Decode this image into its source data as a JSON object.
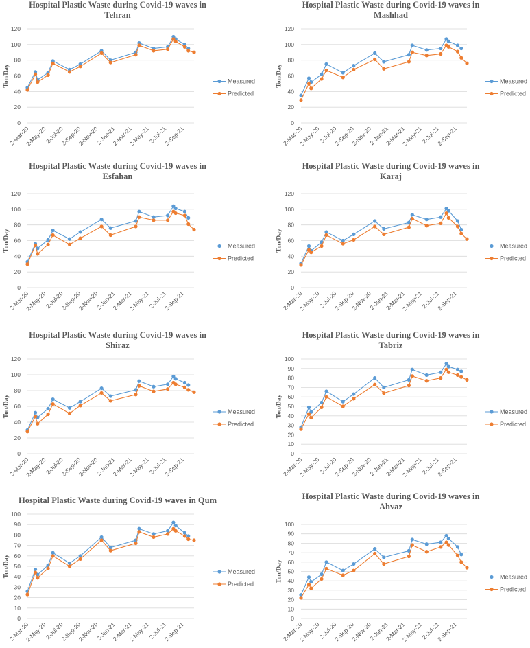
{
  "colors": {
    "measured": "#5B9BD5",
    "predicted": "#ED7D31",
    "grid": "#D9D9D9"
  },
  "chart_data": [
    {
      "type": "line",
      "title_lines": [
        "Hospital Plastic Waste during  Covid-19 waves in",
        "Tehran"
      ],
      "ylabel": "Ton/Day",
      "ylim": [
        0,
        120
      ],
      "ystep": 20,
      "xlim": [
        0,
        589
      ],
      "x_unit": "days since 2-Mar-20",
      "x": [
        0,
        28,
        36,
        73,
        90,
        149,
        187,
        262,
        294,
        383,
        395,
        446,
        496,
        516,
        524,
        556,
        569,
        589
      ],
      "x_tick_labels": [
        "2-Mar-20",
        "2-May-20",
        "2-Jul-20",
        "2-Sep-20",
        "2-Nov-20",
        "2-Jan-21",
        "2-Mar-21",
        "2-May-21",
        "2-Jul-21",
        "2-Sep-21"
      ],
      "x_tick_values": [
        0,
        61,
        122,
        184,
        245,
        306,
        365,
        426,
        487,
        549
      ],
      "legend": "right",
      "grid": true,
      "series": [
        {
          "name": "Measured",
          "values": [
            45,
            65,
            55,
            64,
            79,
            68,
            75,
            92,
            80,
            90,
            102,
            95,
            97,
            110,
            107,
            100,
            95,
            null
          ]
        },
        {
          "name": "Predicted",
          "values": [
            42,
            62,
            52,
            61,
            76,
            65,
            72,
            89,
            77,
            87,
            99,
            92,
            94,
            107,
            104,
            97,
            92,
            90
          ]
        }
      ]
    },
    {
      "type": "line",
      "title_lines": [
        "Hospital Plastic Waste during  Covid-19 waves in",
        "Mashhad"
      ],
      "ylabel": "Ton/Day",
      "ylim": [
        0,
        120
      ],
      "ystep": 20,
      "xlim": [
        0,
        589
      ],
      "x_unit": "days since 2-Mar-20",
      "x": [
        0,
        28,
        36,
        73,
        90,
        149,
        187,
        262,
        294,
        383,
        395,
        446,
        496,
        516,
        524,
        556,
        569,
        589
      ],
      "x_tick_labels": [
        "2-Mar-20",
        "2-May-20",
        "2-Jul-20",
        "2-Sep-20",
        "2-Nov-20",
        "2-Jan-21",
        "2-Mar-21",
        "2-May-21",
        "2-Jul-21",
        "2-Sep-21"
      ],
      "x_tick_values": [
        0,
        61,
        122,
        184,
        245,
        306,
        365,
        426,
        487,
        549
      ],
      "legend": "right",
      "grid": true,
      "series": [
        {
          "name": "Measured",
          "values": [
            35,
            57,
            52,
            62,
            75,
            64,
            73,
            89,
            78,
            87,
            99,
            93,
            95,
            107,
            104,
            99,
            95,
            null
          ]
        },
        {
          "name": "Predicted",
          "values": [
            29,
            50,
            44,
            56,
            67,
            58,
            68,
            81,
            69,
            78,
            90,
            86,
            88,
            99,
            97,
            91,
            83,
            76
          ]
        }
      ]
    },
    {
      "type": "line",
      "title_lines": [
        "Hospital Plastic Waste during  Covid-19 waves in",
        "Esfahan"
      ],
      "ylabel": "Ton/Day",
      "ylim": [
        0,
        120
      ],
      "ystep": 20,
      "xlim": [
        0,
        589
      ],
      "x_unit": "days since 2-Mar-20",
      "x": [
        0,
        28,
        36,
        73,
        90,
        149,
        187,
        262,
        294,
        383,
        395,
        446,
        496,
        516,
        524,
        556,
        569,
        589
      ],
      "x_tick_labels": [
        "2-Mar-20",
        "2-May-20",
        "2-Jul-20",
        "2-Sep-20",
        "2-Nov-20",
        "2-Jan-21",
        "2-Mar-21",
        "2-May-21",
        "2-Jul-21",
        "2-Sep-21"
      ],
      "x_tick_values": [
        0,
        61,
        122,
        184,
        245,
        306,
        365,
        426,
        487,
        549
      ],
      "legend": "right",
      "grid": true,
      "series": [
        {
          "name": "Measured",
          "values": [
            33,
            56,
            50,
            61,
            73,
            62,
            71,
            87,
            76,
            85,
            97,
            90,
            92,
            104,
            101,
            97,
            89,
            null
          ]
        },
        {
          "name": "Predicted",
          "values": [
            30,
            54,
            43,
            55,
            67,
            55,
            63,
            78,
            67,
            78,
            90,
            86,
            86,
            97,
            95,
            92,
            81,
            74
          ]
        }
      ]
    },
    {
      "type": "line",
      "title_lines": [
        "Hospital Plastic Waste during  Covid-19 waves in",
        "Karaj"
      ],
      "ylabel": "Ton/Day",
      "ylim": [
        0,
        120
      ],
      "ystep": 20,
      "xlim": [
        0,
        589
      ],
      "x_unit": "days since 2-Mar-20",
      "x": [
        0,
        28,
        36,
        73,
        90,
        149,
        187,
        262,
        294,
        383,
        395,
        446,
        496,
        516,
        524,
        556,
        569,
        589
      ],
      "x_tick_labels": [
        "2-Mar-20",
        "2-May-20",
        "2-Jul-20",
        "2-Sep-20",
        "2-Nov-20",
        "2-Jan-21",
        "2-Mar-21",
        "2-May-21",
        "2-Jul-21",
        "2-Sep-21"
      ],
      "x_tick_values": [
        0,
        61,
        122,
        184,
        245,
        306,
        365,
        426,
        487,
        549
      ],
      "legend": "right",
      "grid": true,
      "series": [
        {
          "name": "Measured",
          "values": [
            31,
            53,
            47,
            58,
            71,
            60,
            68,
            85,
            75,
            83,
            93,
            87,
            90,
            101,
            98,
            85,
            74,
            null
          ]
        },
        {
          "name": "Predicted",
          "values": [
            29,
            48,
            45,
            53,
            67,
            56,
            61,
            78,
            68,
            77,
            88,
            79,
            82,
            95,
            89,
            78,
            69,
            62
          ]
        }
      ]
    },
    {
      "type": "line",
      "title_lines": [
        "Hospital Plastic Waste during  Covid-19 waves in",
        "Shiraz"
      ],
      "ylabel": "Ton/Day",
      "ylim": [
        0,
        120
      ],
      "ystep": 20,
      "xlim": [
        0,
        589
      ],
      "x_unit": "days since 2-Mar-20",
      "x": [
        0,
        28,
        36,
        73,
        90,
        149,
        187,
        262,
        294,
        383,
        395,
        446,
        496,
        516,
        524,
        556,
        569,
        589
      ],
      "x_tick_labels": [
        "2-Mar-20",
        "2-May-20",
        "2-Jul-20",
        "2-Sep-20",
        "2-Nov-20",
        "2-Jan-21",
        "2-Mar-21",
        "2-May-21",
        "2-Jul-21",
        "2-Sep-21"
      ],
      "x_tick_values": [
        0,
        61,
        122,
        184,
        245,
        306,
        365,
        426,
        487,
        549
      ],
      "legend": "right",
      "grid": true,
      "series": [
        {
          "name": "Measured",
          "values": [
            30,
            52,
            46,
            57,
            69,
            58,
            66,
            83,
            73,
            81,
            92,
            85,
            88,
            98,
            95,
            90,
            87,
            null
          ]
        },
        {
          "name": "Predicted",
          "values": [
            28,
            47,
            38,
            50,
            63,
            51,
            61,
            77,
            67,
            75,
            86,
            79,
            82,
            90,
            88,
            84,
            81,
            78
          ]
        }
      ]
    },
    {
      "type": "line",
      "title_lines": [
        "Hospital Plastic Waste during  Covid-19 waves in",
        "Tabriz"
      ],
      "ylabel": "Ton/Day",
      "ylim": [
        0,
        100
      ],
      "ystep": 10,
      "xlim": [
        0,
        589
      ],
      "x_unit": "days since 2-Mar-20",
      "x": [
        0,
        28,
        36,
        73,
        90,
        149,
        187,
        262,
        294,
        383,
        395,
        446,
        496,
        516,
        524,
        556,
        569,
        589
      ],
      "x_tick_labels": [
        "2-Mar-20",
        "2-May-20",
        "2-Jul-20",
        "2-Sep-20",
        "2-Nov-20",
        "2-Jan-21",
        "2-Mar-21",
        "2-May-21",
        "2-Jul-21",
        "2-Sep-21"
      ],
      "x_tick_values": [
        0,
        61,
        122,
        184,
        245,
        306,
        365,
        426,
        487,
        549
      ],
      "legend": "right",
      "grid": true,
      "series": [
        {
          "name": "Measured",
          "values": [
            28,
            49,
            44,
            54,
            66,
            55,
            63,
            80,
            70,
            78,
            89,
            83,
            86,
            95,
            92,
            89,
            87,
            null
          ]
        },
        {
          "name": "Predicted",
          "values": [
            26,
            42,
            38,
            49,
            60,
            50,
            58,
            73,
            64,
            72,
            82,
            77,
            80,
            89,
            86,
            83,
            81,
            78
          ]
        }
      ]
    },
    {
      "type": "line",
      "title_lines": [
        "Hospital Plastic Waste during  Covid-19 waves in Qum"
      ],
      "ylabel": "Ton/Day",
      "ylim": [
        0,
        100
      ],
      "ystep": 10,
      "xlim": [
        0,
        589
      ],
      "x_unit": "days since 2-Mar-20",
      "x": [
        0,
        28,
        36,
        73,
        90,
        149,
        187,
        262,
        294,
        383,
        395,
        446,
        496,
        516,
        524,
        556,
        569,
        589
      ],
      "x_tick_labels": [
        "2-Mar-20",
        "2-May-20",
        "2-Jul-20",
        "2-Sep-20",
        "2-Nov-20",
        "2-Jan-21",
        "2-Mar-21",
        "2-May-21",
        "2-Jul-21",
        "2-Sep-21"
      ],
      "x_tick_values": [
        0,
        61,
        122,
        184,
        245,
        306,
        365,
        426,
        487,
        549
      ],
      "legend": "right",
      "grid": true,
      "series": [
        {
          "name": "Measured",
          "values": [
            26,
            47,
            42,
            51,
            63,
            53,
            60,
            78,
            68,
            75,
            86,
            81,
            84,
            92,
            89,
            82,
            79,
            null
          ]
        },
        {
          "name": "Predicted",
          "values": [
            23,
            44,
            39,
            48,
            60,
            50,
            57,
            75,
            65,
            72,
            83,
            78,
            81,
            86,
            84,
            79,
            76,
            75
          ]
        }
      ]
    },
    {
      "type": "line",
      "title_lines": [
        "Hospital Plastic Waste during  Covid-19 waves in",
        "Ahvaz"
      ],
      "ylabel": "Ton/Day",
      "ylim": [
        0,
        100
      ],
      "ystep": 10,
      "xlim": [
        0,
        589
      ],
      "x_unit": "days since 2-Mar-20",
      "x": [
        0,
        28,
        36,
        73,
        90,
        149,
        187,
        262,
        294,
        383,
        395,
        446,
        496,
        516,
        524,
        556,
        569,
        589
      ],
      "x_tick_labels": [
        "2-Mar-20",
        "2-May-20",
        "2-Jul-20",
        "2-Sep-20",
        "2-Nov-20",
        "2-Jan-21",
        "2-Mar-21",
        "2-May-21",
        "2-Jul-21",
        "2-Sep-21"
      ],
      "x_tick_values": [
        0,
        61,
        122,
        184,
        245,
        306,
        365,
        426,
        487,
        549
      ],
      "legend": "right",
      "grid": true,
      "series": [
        {
          "name": "Measured",
          "values": [
            25,
            44,
            39,
            47,
            60,
            51,
            58,
            74,
            65,
            72,
            84,
            79,
            81,
            88,
            85,
            76,
            68,
            null
          ]
        },
        {
          "name": "Predicted",
          "values": [
            22,
            36,
            32,
            42,
            53,
            46,
            51,
            69,
            58,
            66,
            78,
            71,
            76,
            81,
            78,
            67,
            60,
            54
          ]
        }
      ]
    }
  ]
}
